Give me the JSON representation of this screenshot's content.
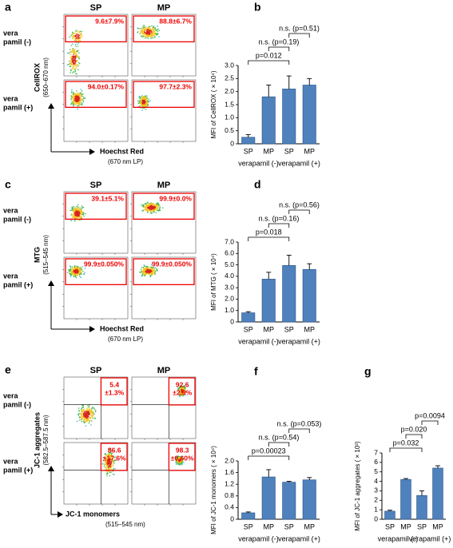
{
  "chart_data": [
    {
      "type": "bar",
      "label": "b",
      "y_label": "MFI of CellROX ( × 10⁴)",
      "categories": [
        "SP",
        "MP",
        "SP",
        "MP"
      ],
      "groups": [
        "verapamil (-)",
        "verapamil (+)"
      ],
      "values": [
        0.25,
        1.8,
        2.1,
        2.25
      ],
      "errors": [
        0.1,
        0.45,
        0.5,
        0.25
      ],
      "color": "#4f81bd",
      "ylim": [
        0,
        3
      ],
      "yticks": [
        0,
        0.5,
        {
          "value": 1,
          "label": "1.0"
        },
        1.5,
        {
          "value": 2,
          "label": "2.0"
        },
        2.5,
        {
          "value": 3,
          "label": "3.0"
        }
      ],
      "annotations": [
        "p=0.012",
        "n.s. (p=0.19)",
        "n.s. (p=0.51)"
      ]
    },
    {
      "type": "bar",
      "label": "d",
      "y_label": "MFI of MTG ( × 10⁴)",
      "categories": [
        "SP",
        "MP",
        "SP",
        "MP"
      ],
      "groups": [
        "verapamil (-)",
        "verapamil (+)"
      ],
      "values": [
        0.8,
        3.75,
        4.95,
        4.6
      ],
      "errors": [
        0.1,
        0.6,
        0.9,
        0.5
      ],
      "color": "#4f81bd",
      "ylim": [
        0,
        7
      ],
      "yticks": [
        0,
        {
          "value": 1,
          "label": "1.0"
        },
        {
          "value": 2,
          "label": "2.0"
        },
        {
          "value": 3,
          "label": "3.0"
        },
        {
          "value": 4,
          "label": "4.0"
        },
        {
          "value": 5,
          "label": "5.0"
        },
        {
          "value": 6,
          "label": "6.0"
        },
        {
          "value": 7,
          "label": "7.0"
        }
      ],
      "annotations": [
        "p=0.018",
        "n.s. (p=0.16)",
        "n.s. (p=0.56)"
      ]
    },
    {
      "type": "bar",
      "label": "f",
      "y_label": "MFI of  JC-1 monomers ( × 10⁴)",
      "categories": [
        "SP",
        "MP",
        "SP",
        "MP"
      ],
      "groups": [
        "verapamil (-)",
        "verapamil (+)"
      ],
      "values": [
        0.22,
        1.45,
        1.27,
        1.35
      ],
      "errors": [
        0.03,
        0.25,
        0.03,
        0.08
      ],
      "color": "#4f81bd",
      "ylim": [
        0,
        2
      ],
      "yticks": [
        0,
        0.4,
        0.8,
        1.2,
        1.6,
        {
          "value": 2,
          "label": "2.0"
        }
      ],
      "annotations": [
        "p=0.00023",
        "n.s. (p=0.54)",
        "n.s. (p=0.053)"
      ]
    },
    {
      "type": "bar",
      "label": "g",
      "y_label": "MFI of  JC-1 aggregates ( × 10³)",
      "categories": [
        "SP",
        "MP",
        "SP",
        "MP"
      ],
      "groups": [
        "verapamil (-)",
        "verapamil (+)"
      ],
      "values": [
        0.85,
        4.2,
        2.5,
        5.4
      ],
      "errors": [
        0.1,
        0.1,
        0.5,
        0.25
      ],
      "color": "#4f81bd",
      "ylim": [
        0,
        7
      ],
      "yticks": [
        0,
        1,
        2,
        3,
        4,
        5,
        6,
        7
      ],
      "annotations": [
        "p=0.032",
        "p=0.020",
        "p=0.0094"
      ]
    }
  ],
  "flow_panels": [
    {
      "label": "a",
      "columns": [
        "SP",
        "MP"
      ],
      "rows": [
        [
          "vera",
          "pamil (-)"
        ],
        [
          "vera",
          "pamil (+)"
        ]
      ],
      "y_label": "CellROX",
      "y_unit": "(650–670 nm)",
      "x_label": "Hoechst Red",
      "x_unit": "(670 nm LP)",
      "gates": [
        [
          "9.6±7.9%"
        ],
        [
          "88.8±6.7%"
        ],
        [
          "94.0±0.17%"
        ],
        [
          "97.7±2.3%"
        ]
      ]
    },
    {
      "label": "c",
      "columns": [
        "SP",
        "MP"
      ],
      "rows": [
        [
          "vera",
          "pamil (-)"
        ],
        [
          "vera",
          "pamil (+)"
        ]
      ],
      "y_label": "MTG",
      "y_unit": "(515–545 nm)",
      "x_label": "Hoechst Red",
      "x_unit": "(670 nm LP)",
      "gates": [
        [
          "39.1±5.1%"
        ],
        [
          "99.9±0.0%"
        ],
        [
          "99.9±0.050%"
        ],
        [
          "99.9±0.050%"
        ]
      ]
    },
    {
      "label": "e",
      "columns": [
        "SP",
        "MP"
      ],
      "rows": [
        [
          "vera",
          "pamil (-)"
        ],
        [
          "vera",
          "pamil (+)"
        ]
      ],
      "y_label": "JC-1 aggregates",
      "y_unit": "(582.5–587.5 nm)",
      "x_label": "JC-1 monomers",
      "x_unit": "(515–545 nm)",
      "gates": [
        [
          "5.4",
          "±1.3%"
        ],
        [
          "92.6",
          "±2.9%"
        ],
        [
          "86.6",
          "±17.6%"
        ],
        [
          "98.3",
          "±0.60%"
        ]
      ]
    }
  ]
}
